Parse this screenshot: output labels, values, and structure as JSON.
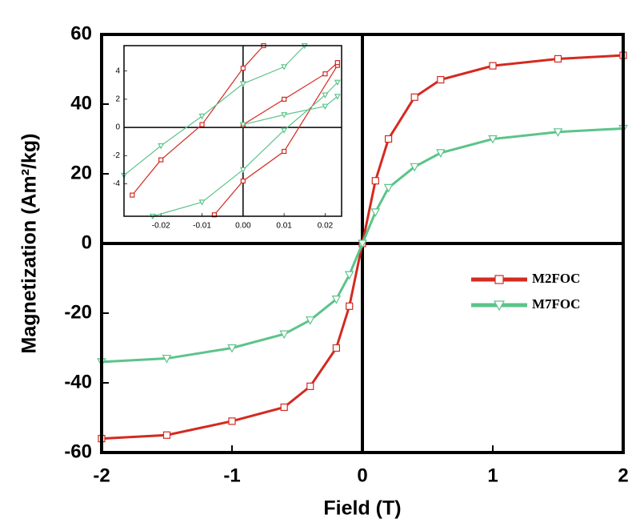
{
  "chart_data": [
    {
      "type": "line",
      "x_label": "Field (T)",
      "y_label": "Magnetization (Am²/kg)",
      "xlim": [
        -2,
        2
      ],
      "ylim": [
        -60,
        60
      ],
      "xticks": [
        -2,
        -1,
        0,
        1,
        2
      ],
      "yticks": [
        -60,
        -40,
        -20,
        0,
        20,
        40,
        60
      ],
      "zero_lines": true,
      "legend": "center right",
      "series": [
        {
          "name": "M2FOC",
          "color": "#d42a20",
          "marker": "square",
          "x": [
            -2,
            -1.5,
            -1,
            -0.6,
            -0.4,
            -0.2,
            -0.1,
            0,
            0.1,
            0.2,
            0.4,
            0.6,
            1,
            1.5,
            2
          ],
          "values": [
            -56,
            -55,
            -51,
            -47,
            -41,
            -30,
            -18,
            0,
            18,
            30,
            42,
            47,
            51,
            53,
            54
          ]
        },
        {
          "name": "M7FOC",
          "color": "#5cc48a",
          "marker": "triangle-down",
          "x": [
            -2,
            -1.5,
            -1,
            -0.6,
            -0.4,
            -0.2,
            -0.1,
            0,
            0.1,
            0.2,
            0.4,
            0.6,
            1,
            1.5,
            2
          ],
          "values": [
            -34,
            -33,
            -30,
            -26,
            -22,
            -16,
            -9,
            0,
            9,
            16,
            22,
            26,
            30,
            32,
            33
          ]
        }
      ]
    },
    {
      "type": "line",
      "xlim": [
        -0.029,
        0.024
      ],
      "ylim": [
        -6.3,
        5.8
      ],
      "xticks": [
        -0.02,
        -0.01,
        {
          "value": 0,
          "label": "0.00"
        },
        0.01,
        0.02
      ],
      "yticks": [
        -4,
        -2,
        0,
        2,
        4
      ],
      "zero_lines": true,
      "series": [
        {
          "color": "#d42a20",
          "marker": "square",
          "x": [
            -0.027,
            -0.02,
            -0.01,
            0,
            0.005
          ],
          "values": [
            -4.8,
            -2.3,
            0.2,
            4.2,
            5.8
          ]
        },
        {
          "color": "#d42a20",
          "marker": "square",
          "x": [
            -0.007,
            0,
            0.01,
            0.023
          ],
          "values": [
            -6.2,
            -3.8,
            -1.7,
            4.4
          ]
        },
        {
          "color": "#d42a20",
          "marker": "square",
          "x": [
            0,
            0.01,
            0.02,
            0.023
          ],
          "values": [
            0.2,
            2,
            3.8,
            4.6
          ]
        },
        {
          "color": "#5cc48a",
          "marker": "triangle-down",
          "x": [
            -0.029,
            -0.02,
            -0.01,
            0,
            0.01,
            0.015
          ],
          "values": [
            -3.4,
            -1.3,
            0.8,
            3.1,
            4.3,
            5.8
          ]
        },
        {
          "color": "#5cc48a",
          "marker": "triangle-down",
          "x": [
            -0.022,
            -0.01,
            0,
            0.01,
            0.02,
            0.023
          ],
          "values": [
            -6.3,
            -5.3,
            -3,
            -0.2,
            2.3,
            3.2
          ]
        },
        {
          "color": "#5cc48a",
          "marker": "triangle-down",
          "x": [
            0,
            0.01,
            0.02,
            0.023
          ],
          "values": [
            0.2,
            0.9,
            1.5,
            2.2
          ]
        }
      ]
    }
  ]
}
